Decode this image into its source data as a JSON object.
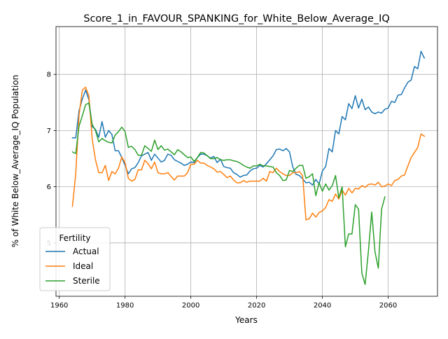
{
  "chart_data": {
    "type": "line",
    "title": "Score_1_in_FAVOUR_SPANKING_for_White_Below_Average_IQ",
    "xlabel": "Years",
    "ylabel": "% of White Below_Average_IQ Population",
    "xlim": [
      1959,
      2075
    ],
    "ylim": [
      4.05,
      8.85
    ],
    "xticks": [
      1960,
      1980,
      2000,
      2020,
      2040,
      2060
    ],
    "yticks": [
      5,
      6,
      7,
      8
    ],
    "grid": true,
    "legend": {
      "title": "Fertility",
      "placement": "lower-left"
    },
    "series": [
      {
        "name": "Actual",
        "color": "#1f77b4",
        "points": [
          [
            1964,
            6.87
          ],
          [
            1965,
            6.87
          ],
          [
            1966,
            7.35
          ],
          [
            1967,
            7.56
          ],
          [
            1968,
            7.72
          ],
          [
            1969,
            7.55
          ],
          [
            1970,
            7.07
          ],
          [
            1971,
            7.02
          ],
          [
            1972,
            6.88
          ],
          [
            1973,
            7.16
          ],
          [
            1974,
            6.88
          ],
          [
            1975,
            7.0
          ],
          [
            1976,
            6.93
          ],
          [
            1977,
            6.64
          ],
          [
            1978,
            6.64
          ],
          [
            1979,
            6.52
          ],
          [
            1980,
            6.38
          ],
          [
            1981,
            6.23
          ],
          [
            1982,
            6.32
          ],
          [
            1983,
            6.34
          ],
          [
            1984,
            6.43
          ],
          [
            1985,
            6.55
          ],
          [
            1986,
            6.58
          ],
          [
            1987,
            6.61
          ],
          [
            1988,
            6.47
          ],
          [
            1989,
            6.58
          ],
          [
            1990,
            6.51
          ],
          [
            1991,
            6.44
          ],
          [
            1992,
            6.47
          ],
          [
            1993,
            6.58
          ],
          [
            1994,
            6.56
          ],
          [
            1995,
            6.48
          ],
          [
            1996,
            6.45
          ],
          [
            1997,
            6.42
          ],
          [
            1998,
            6.38
          ],
          [
            1999,
            6.4
          ],
          [
            2000,
            6.44
          ],
          [
            2001,
            6.43
          ],
          [
            2002,
            6.52
          ],
          [
            2003,
            6.58
          ],
          [
            2004,
            6.58
          ],
          [
            2005,
            6.55
          ],
          [
            2006,
            6.51
          ],
          [
            2007,
            6.54
          ],
          [
            2008,
            6.43
          ],
          [
            2009,
            6.49
          ],
          [
            2010,
            6.36
          ],
          [
            2011,
            6.34
          ],
          [
            2012,
            6.33
          ],
          [
            2013,
            6.25
          ],
          [
            2014,
            6.22
          ],
          [
            2015,
            6.17
          ],
          [
            2016,
            6.2
          ],
          [
            2017,
            6.21
          ],
          [
            2018,
            6.28
          ],
          [
            2019,
            6.32
          ],
          [
            2020,
            6.33
          ],
          [
            2021,
            6.38
          ],
          [
            2022,
            6.35
          ],
          [
            2023,
            6.41
          ],
          [
            2024,
            6.48
          ],
          [
            2025,
            6.55
          ],
          [
            2026,
            6.66
          ],
          [
            2027,
            6.67
          ],
          [
            2028,
            6.64
          ],
          [
            2029,
            6.68
          ],
          [
            2030,
            6.62
          ],
          [
            2031,
            6.35
          ],
          [
            2032,
            6.22
          ],
          [
            2033,
            6.2
          ],
          [
            2034,
            6.14
          ],
          [
            2035,
            6.07
          ],
          [
            2036,
            6.08
          ],
          [
            2037,
            6.03
          ],
          [
            2038,
            6.13
          ],
          [
            2039,
            6.05
          ],
          [
            2040,
            6.28
          ],
          [
            2041,
            6.36
          ],
          [
            2042,
            6.68
          ],
          [
            2043,
            6.62
          ],
          [
            2044,
            7.0
          ],
          [
            2045,
            6.94
          ],
          [
            2046,
            7.25
          ],
          [
            2047,
            7.19
          ],
          [
            2048,
            7.48
          ],
          [
            2049,
            7.39
          ],
          [
            2050,
            7.62
          ],
          [
            2051,
            7.4
          ],
          [
            2052,
            7.56
          ],
          [
            2053,
            7.37
          ],
          [
            2054,
            7.42
          ],
          [
            2055,
            7.33
          ],
          [
            2056,
            7.3
          ],
          [
            2057,
            7.33
          ],
          [
            2058,
            7.31
          ],
          [
            2059,
            7.38
          ],
          [
            2060,
            7.4
          ],
          [
            2061,
            7.52
          ],
          [
            2062,
            7.5
          ],
          [
            2063,
            7.63
          ],
          [
            2064,
            7.64
          ],
          [
            2065,
            7.76
          ],
          [
            2066,
            7.86
          ],
          [
            2067,
            7.9
          ],
          [
            2068,
            8.14
          ],
          [
            2069,
            8.1
          ],
          [
            2070,
            8.41
          ],
          [
            2071,
            8.29
          ]
        ]
      },
      {
        "name": "Ideal",
        "color": "#ff7f0e",
        "points": [
          [
            1964,
            5.65
          ],
          [
            1965,
            6.23
          ],
          [
            1966,
            7.27
          ],
          [
            1967,
            7.72
          ],
          [
            1968,
            7.77
          ],
          [
            1969,
            7.62
          ],
          [
            1970,
            6.85
          ],
          [
            1971,
            6.48
          ],
          [
            1972,
            6.25
          ],
          [
            1973,
            6.25
          ],
          [
            1974,
            6.38
          ],
          [
            1975,
            6.11
          ],
          [
            1976,
            6.27
          ],
          [
            1977,
            6.23
          ],
          [
            1978,
            6.33
          ],
          [
            1979,
            6.53
          ],
          [
            1980,
            6.43
          ],
          [
            1981,
            6.15
          ],
          [
            1982,
            6.1
          ],
          [
            1983,
            6.13
          ],
          [
            1984,
            6.3
          ],
          [
            1985,
            6.3
          ],
          [
            1986,
            6.47
          ],
          [
            1987,
            6.41
          ],
          [
            1988,
            6.32
          ],
          [
            1989,
            6.44
          ],
          [
            1990,
            6.25
          ],
          [
            1991,
            6.23
          ],
          [
            1992,
            6.23
          ],
          [
            1993,
            6.25
          ],
          [
            1994,
            6.18
          ],
          [
            1995,
            6.12
          ],
          [
            1996,
            6.19
          ],
          [
            1997,
            6.19
          ],
          [
            1998,
            6.19
          ],
          [
            1999,
            6.25
          ],
          [
            2000,
            6.4
          ],
          [
            2001,
            6.4
          ],
          [
            2002,
            6.47
          ],
          [
            2003,
            6.42
          ],
          [
            2004,
            6.42
          ],
          [
            2005,
            6.38
          ],
          [
            2006,
            6.35
          ],
          [
            2007,
            6.32
          ],
          [
            2008,
            6.26
          ],
          [
            2009,
            6.27
          ],
          [
            2010,
            6.22
          ],
          [
            2011,
            6.16
          ],
          [
            2012,
            6.19
          ],
          [
            2013,
            6.12
          ],
          [
            2014,
            6.07
          ],
          [
            2015,
            6.07
          ],
          [
            2016,
            6.11
          ],
          [
            2017,
            6.08
          ],
          [
            2018,
            6.1
          ],
          [
            2019,
            6.1
          ],
          [
            2020,
            6.1
          ],
          [
            2021,
            6.1
          ],
          [
            2022,
            6.15
          ],
          [
            2023,
            6.1
          ],
          [
            2024,
            6.27
          ],
          [
            2025,
            6.25
          ],
          [
            2026,
            6.33
          ],
          [
            2027,
            6.27
          ],
          [
            2028,
            6.23
          ],
          [
            2029,
            6.2
          ],
          [
            2030,
            6.2
          ],
          [
            2031,
            6.25
          ],
          [
            2032,
            6.25
          ],
          [
            2033,
            6.27
          ],
          [
            2034,
            6.2
          ],
          [
            2035,
            5.41
          ],
          [
            2036,
            5.43
          ],
          [
            2037,
            5.53
          ],
          [
            2038,
            5.46
          ],
          [
            2039,
            5.54
          ],
          [
            2040,
            5.57
          ],
          [
            2041,
            5.63
          ],
          [
            2042,
            5.77
          ],
          [
            2043,
            5.74
          ],
          [
            2044,
            5.87
          ],
          [
            2045,
            5.78
          ],
          [
            2046,
            5.94
          ],
          [
            2047,
            5.85
          ],
          [
            2048,
            5.97
          ],
          [
            2049,
            5.89
          ],
          [
            2050,
            5.97
          ],
          [
            2051,
            5.96
          ],
          [
            2052,
            6.02
          ],
          [
            2053,
            5.99
          ],
          [
            2054,
            6.04
          ],
          [
            2055,
            6.05
          ],
          [
            2056,
            6.03
          ],
          [
            2057,
            6.08
          ],
          [
            2058,
            6.0
          ],
          [
            2059,
            6.01
          ],
          [
            2060,
            6.05
          ],
          [
            2061,
            6.02
          ],
          [
            2062,
            6.11
          ],
          [
            2063,
            6.13
          ],
          [
            2064,
            6.19
          ],
          [
            2065,
            6.21
          ],
          [
            2066,
            6.37
          ],
          [
            2067,
            6.52
          ],
          [
            2068,
            6.61
          ],
          [
            2069,
            6.7
          ],
          [
            2070,
            6.94
          ],
          [
            2071,
            6.9
          ]
        ]
      },
      {
        "name": "Sterile",
        "color": "#2ca02c",
        "points": [
          [
            1964,
            6.62
          ],
          [
            1965,
            6.59
          ],
          [
            1966,
            7.08
          ],
          [
            1967,
            7.26
          ],
          [
            1968,
            7.46
          ],
          [
            1969,
            7.49
          ],
          [
            1970,
            7.11
          ],
          [
            1971,
            7.0
          ],
          [
            1972,
            6.8
          ],
          [
            1973,
            6.86
          ],
          [
            1974,
            6.82
          ],
          [
            1975,
            6.79
          ],
          [
            1976,
            6.78
          ],
          [
            1977,
            6.92
          ],
          [
            1978,
            6.98
          ],
          [
            1979,
            7.06
          ],
          [
            1980,
            6.98
          ],
          [
            1981,
            6.7
          ],
          [
            1982,
            6.72
          ],
          [
            1983,
            6.66
          ],
          [
            1984,
            6.56
          ],
          [
            1985,
            6.56
          ],
          [
            1986,
            6.73
          ],
          [
            1987,
            6.68
          ],
          [
            1988,
            6.63
          ],
          [
            1989,
            6.83
          ],
          [
            1990,
            6.66
          ],
          [
            1991,
            6.73
          ],
          [
            1992,
            6.65
          ],
          [
            1993,
            6.67
          ],
          [
            1994,
            6.62
          ],
          [
            1995,
            6.57
          ],
          [
            1996,
            6.66
          ],
          [
            1997,
            6.62
          ],
          [
            1998,
            6.57
          ],
          [
            1999,
            6.52
          ],
          [
            2000,
            6.53
          ],
          [
            2001,
            6.45
          ],
          [
            2002,
            6.52
          ],
          [
            2003,
            6.61
          ],
          [
            2004,
            6.6
          ],
          [
            2005,
            6.55
          ],
          [
            2006,
            6.5
          ],
          [
            2007,
            6.5
          ],
          [
            2008,
            6.52
          ],
          [
            2009,
            6.48
          ],
          [
            2010,
            6.47
          ],
          [
            2011,
            6.48
          ],
          [
            2012,
            6.48
          ],
          [
            2013,
            6.46
          ],
          [
            2014,
            6.45
          ],
          [
            2015,
            6.42
          ],
          [
            2016,
            6.38
          ],
          [
            2017,
            6.35
          ],
          [
            2018,
            6.33
          ],
          [
            2019,
            6.37
          ],
          [
            2020,
            6.37
          ],
          [
            2021,
            6.4
          ],
          [
            2022,
            6.37
          ],
          [
            2023,
            6.37
          ],
          [
            2024,
            6.36
          ],
          [
            2025,
            6.35
          ],
          [
            2026,
            6.25
          ],
          [
            2027,
            6.2
          ],
          [
            2028,
            6.11
          ],
          [
            2029,
            6.12
          ],
          [
            2030,
            6.29
          ],
          [
            2031,
            6.27
          ],
          [
            2032,
            6.33
          ],
          [
            2033,
            6.38
          ],
          [
            2034,
            6.38
          ],
          [
            2035,
            6.15
          ],
          [
            2036,
            6.18
          ],
          [
            2037,
            6.23
          ],
          [
            2038,
            5.84
          ],
          [
            2039,
            6.07
          ],
          [
            2040,
            5.92
          ],
          [
            2041,
            6.05
          ],
          [
            2042,
            5.94
          ],
          [
            2043,
            6.02
          ],
          [
            2044,
            6.2
          ],
          [
            2045,
            5.8
          ],
          [
            2046,
            6.0
          ],
          [
            2047,
            4.93
          ],
          [
            2048,
            5.16
          ],
          [
            2049,
            5.16
          ],
          [
            2050,
            5.68
          ],
          [
            2051,
            5.6
          ],
          [
            2052,
            4.46
          ],
          [
            2053,
            4.26
          ],
          [
            2054,
            4.86
          ],
          [
            2055,
            5.55
          ],
          [
            2056,
            4.84
          ],
          [
            2057,
            4.55
          ],
          [
            2058,
            5.6
          ],
          [
            2059,
            5.82
          ]
        ]
      }
    ]
  }
}
